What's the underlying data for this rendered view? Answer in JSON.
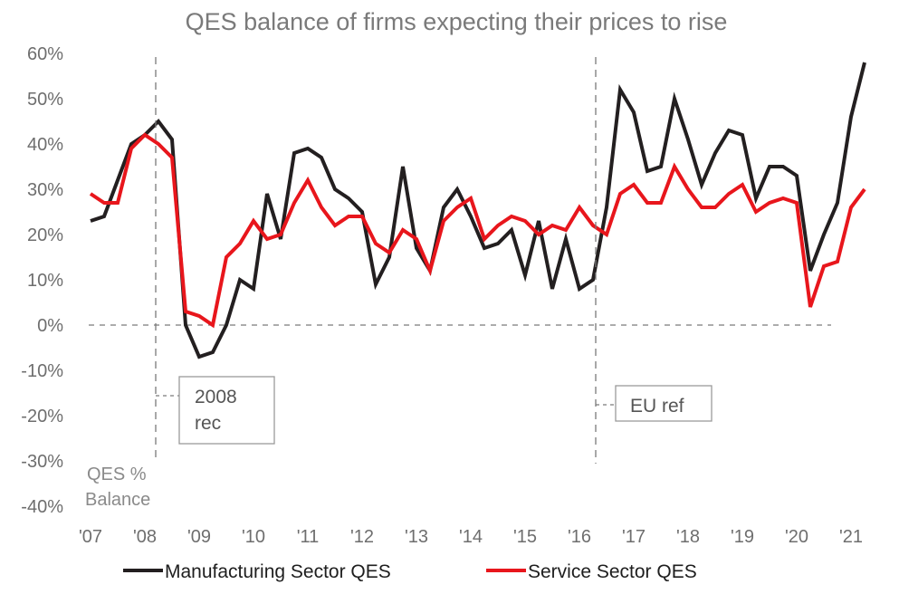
{
  "chart_data": {
    "type": "line",
    "title": "QES balance of firms expecting their prices to rise",
    "ylabel": "QES % Balance",
    "ylabel_lines": [
      "QES %",
      "Balance"
    ],
    "ylim": [
      -40,
      60
    ],
    "yticks": [
      60,
      50,
      40,
      30,
      20,
      10,
      0,
      -10,
      -20,
      -30,
      -40
    ],
    "ytick_labels": [
      "60%",
      "50%",
      "40%",
      "30%",
      "20%",
      "10%",
      "0%",
      "-10%",
      "-20%",
      "-30%",
      "-40%"
    ],
    "xlim": [
      2007.0,
      2021.5
    ],
    "xtick_labels": [
      "'07",
      "'08",
      "'09",
      "'10",
      "'11",
      "'12",
      "'13",
      "'14",
      "'15",
      "'16",
      "'17",
      "'18",
      "'19",
      "'20",
      "'21"
    ],
    "xtick_values": [
      2007,
      2008,
      2009,
      2010,
      2011,
      2012,
      2013,
      2014,
      2015,
      2016,
      2017,
      2018,
      2019,
      2020,
      2021
    ],
    "grid": false,
    "legend_position": "bottom",
    "series": [
      {
        "name": "Manufacturing Sector QES",
        "color": "#231f20",
        "x": [
          2007.0,
          2007.25,
          2007.5,
          2007.75,
          2008.0,
          2008.25,
          2008.5,
          2008.75,
          2009.0,
          2009.25,
          2009.5,
          2009.75,
          2010.0,
          2010.25,
          2010.5,
          2010.75,
          2011.0,
          2011.25,
          2011.5,
          2011.75,
          2012.0,
          2012.25,
          2012.5,
          2012.75,
          2013.0,
          2013.25,
          2013.5,
          2013.75,
          2014.0,
          2014.25,
          2014.5,
          2014.75,
          2015.0,
          2015.25,
          2015.5,
          2015.75,
          2016.0,
          2016.25,
          2016.5,
          2016.75,
          2017.0,
          2017.25,
          2017.5,
          2017.75,
          2018.0,
          2018.25,
          2018.5,
          2018.75,
          2019.0,
          2019.25,
          2019.5,
          2019.75,
          2020.0,
          2020.25,
          2020.5,
          2020.75,
          2021.0,
          2021.25
        ],
        "values": [
          23,
          24,
          32,
          40,
          42,
          45,
          41,
          0,
          -7,
          -6,
          0,
          10,
          8,
          29,
          19,
          38,
          39,
          37,
          30,
          28,
          25,
          9,
          15,
          35,
          17,
          12,
          26,
          30,
          24,
          17,
          18,
          21,
          11,
          23,
          8,
          19,
          8,
          10,
          26,
          52,
          47,
          34,
          35,
          50,
          41,
          31,
          38,
          43,
          42,
          28,
          35,
          35,
          33,
          12,
          20,
          27,
          46,
          58
        ]
      },
      {
        "name": "Service Sector QES",
        "color": "#e8161c",
        "x": [
          2007.0,
          2007.25,
          2007.5,
          2007.75,
          2008.0,
          2008.25,
          2008.5,
          2008.75,
          2009.0,
          2009.25,
          2009.5,
          2009.75,
          2010.0,
          2010.25,
          2010.5,
          2010.75,
          2011.0,
          2011.25,
          2011.5,
          2011.75,
          2012.0,
          2012.25,
          2012.5,
          2012.75,
          2013.0,
          2013.25,
          2013.5,
          2013.75,
          2014.0,
          2014.25,
          2014.5,
          2014.75,
          2015.0,
          2015.25,
          2015.5,
          2015.75,
          2016.0,
          2016.25,
          2016.5,
          2016.75,
          2017.0,
          2017.25,
          2017.5,
          2017.75,
          2018.0,
          2018.25,
          2018.5,
          2018.75,
          2019.0,
          2019.25,
          2019.5,
          2019.75,
          2020.0,
          2020.25,
          2020.5,
          2020.75,
          2021.0,
          2021.25
        ],
        "values": [
          29,
          27,
          27,
          39,
          42,
          40,
          37,
          3,
          2,
          0,
          15,
          18,
          23,
          19,
          20,
          27,
          32,
          26,
          22,
          24,
          24,
          18,
          16,
          21,
          19,
          12,
          23,
          26,
          28,
          19,
          22,
          24,
          23,
          20,
          22,
          21,
          26,
          22,
          20,
          29,
          31,
          27,
          27,
          35,
          30,
          26,
          26,
          29,
          31,
          25,
          27,
          28,
          27,
          4,
          13,
          14,
          26,
          30
        ]
      }
    ],
    "annotations": [
      {
        "label_lines": [
          "2008",
          "rec"
        ],
        "x": 2008.2
      },
      {
        "label_lines": [
          "EU ref"
        ],
        "x": 2016.3
      }
    ],
    "reference_line_y": 0
  }
}
